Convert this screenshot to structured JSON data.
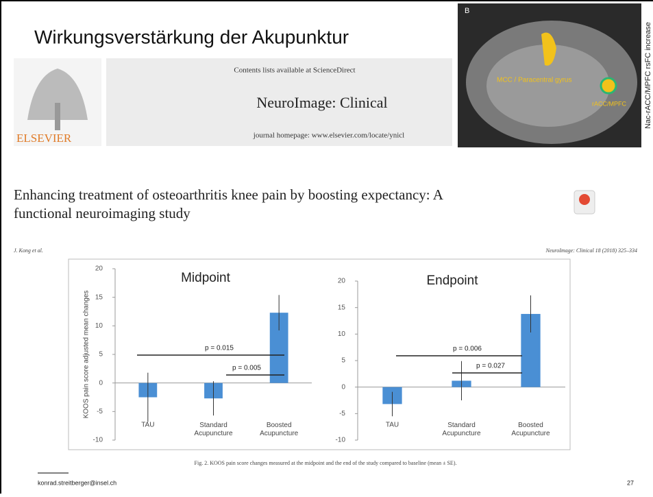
{
  "slide": {
    "title": "Wirkungsverstärkung der Akupunktur",
    "footer_email": "konrad.streitberger@insel.ch",
    "page_number": "27"
  },
  "journal_header": {
    "publisher": "ELSEVIER",
    "contents": "Contents lists available at ScienceDirect",
    "journal": "NeuroImage: Clinical",
    "homepage": "journal homepage: www.elsevier.com/locate/ynicl"
  },
  "brain_image": {
    "panel": "B",
    "label_1": "MCC / Paracentral gyrus",
    "label_2": "rACC/MPFC",
    "side_label": "Nac-rACC/MPFC rsFC increase"
  },
  "paper": {
    "title_line_1": "Enhancing treatment of osteoarthritis knee pain by boosting expectancy: A",
    "title_line_2": "functional neuroimaging study",
    "authors": "J. Kong et al.",
    "citation": "NeuroImage: Clinical 18 (2018) 325–334",
    "caption": "Fig. 2. KOOS pain score changes measured at the midpoint and the end of the study compared to baseline (mean ± SE)."
  },
  "chart_data": [
    {
      "type": "bar",
      "title": "Midpoint",
      "y_label": "KOOS pain score adjusted mean changes",
      "categories": [
        "TAU",
        "Standard Acupuncture",
        "Boosted Acupuncture"
      ],
      "values": [
        -2.5,
        -2.7,
        12.3
      ],
      "errors": [
        4.3,
        3.0,
        3.1
      ],
      "color": "#4a8fd4",
      "ylim": [
        -10,
        20
      ],
      "yticks": [
        -10,
        -5,
        0,
        5,
        10,
        15,
        20
      ],
      "annotations": [
        "p = 0.015",
        "p = 0.005"
      ]
    },
    {
      "type": "bar",
      "title": "Endpoint",
      "categories": [
        "TAU",
        "Standard Acupuncture",
        "Boosted Acupuncture"
      ],
      "values": [
        -3.2,
        1.2,
        13.8
      ],
      "errors": [
        2.3,
        3.7,
        3.5
      ],
      "color": "#4a8fd4",
      "ylim": [
        -10,
        20
      ],
      "yticks": [
        -10,
        -5,
        0,
        5,
        10,
        15,
        20
      ],
      "annotations": [
        "p = 0.006",
        "p = 0.027"
      ]
    }
  ]
}
